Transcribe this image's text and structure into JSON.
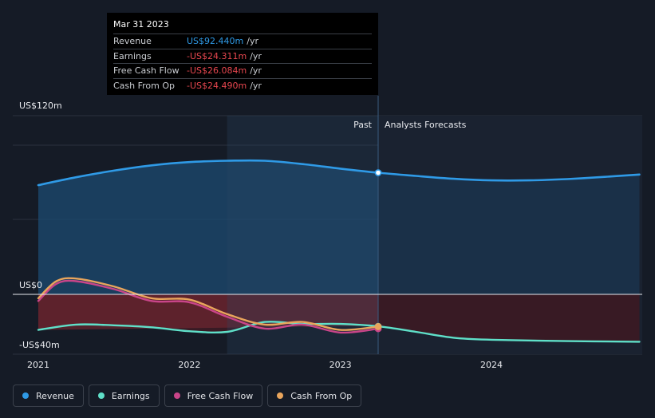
{
  "tooltip": {
    "date": "Mar 31 2023",
    "rows": [
      {
        "label": "Revenue",
        "value": "US$92.440m",
        "unit": "/yr",
        "color": "#2f9ae6"
      },
      {
        "label": "Earnings",
        "value": "-US$24.311m",
        "unit": "/yr",
        "color": "#e8474f"
      },
      {
        "label": "Free Cash Flow",
        "value": "-US$26.084m",
        "unit": "/yr",
        "color": "#e8474f"
      },
      {
        "label": "Cash From Op",
        "value": "-US$24.490m",
        "unit": "/yr",
        "color": "#e8474f"
      }
    ]
  },
  "legend": [
    {
      "label": "Revenue",
      "color": "#2f9ae6"
    },
    {
      "label": "Earnings",
      "color": "#5fe0c9"
    },
    {
      "label": "Free Cash Flow",
      "color": "#c94589"
    },
    {
      "label": "Cash From Op",
      "color": "#e9a55c"
    }
  ],
  "chart_data": {
    "type": "line",
    "y_tick_labels": [
      "US$120m",
      "US$0",
      "-US$40m"
    ],
    "x_tick_labels": [
      "2021",
      "2022",
      "2023",
      "2024"
    ],
    "past_label": "Past",
    "forecast_label": "Analysts Forecasts",
    "ylim": [
      -40,
      120
    ],
    "xlim": [
      2020.83,
      2024.98
    ],
    "past_end": 2023.25,
    "highlight_range": [
      2022.25,
      2023.25
    ],
    "series": [
      {
        "name": "Revenue",
        "color": "#2f9ae6",
        "points": [
          [
            2021.0,
            83
          ],
          [
            2021.25,
            89
          ],
          [
            2021.5,
            94
          ],
          [
            2021.75,
            98
          ],
          [
            2022.0,
            100.5
          ],
          [
            2022.25,
            101.5
          ],
          [
            2022.5,
            101.5
          ],
          [
            2022.75,
            99
          ],
          [
            2023.0,
            95.5
          ],
          [
            2023.25,
            92.4
          ],
          [
            2023.5,
            90
          ],
          [
            2023.75,
            87.8
          ],
          [
            2024.0,
            86.6
          ],
          [
            2024.25,
            86.6
          ],
          [
            2024.5,
            87.6
          ],
          [
            2024.75,
            89.3
          ],
          [
            2024.98,
            91
          ]
        ]
      },
      {
        "name": "Earnings",
        "color": "#5fe0c9",
        "points": [
          [
            2021.0,
            -27
          ],
          [
            2021.25,
            -23
          ],
          [
            2021.5,
            -23.5
          ],
          [
            2021.75,
            -25
          ],
          [
            2022.0,
            -28
          ],
          [
            2022.25,
            -28.5
          ],
          [
            2022.5,
            -21
          ],
          [
            2022.75,
            -22.5
          ],
          [
            2023.0,
            -22.5
          ],
          [
            2023.25,
            -24.3
          ],
          [
            2023.5,
            -28.5
          ],
          [
            2023.75,
            -33
          ],
          [
            2024.0,
            -34.5
          ],
          [
            2024.5,
            -35.5
          ],
          [
            2024.98,
            -36
          ]
        ]
      },
      {
        "name": "Free Cash Flow",
        "color": "#c94589",
        "points": [
          [
            2021.0,
            -5
          ],
          [
            2021.12,
            8
          ],
          [
            2021.25,
            10
          ],
          [
            2021.5,
            4
          ],
          [
            2021.75,
            -5
          ],
          [
            2022.0,
            -6
          ],
          [
            2022.25,
            -17
          ],
          [
            2022.5,
            -26
          ],
          [
            2022.75,
            -23
          ],
          [
            2023.0,
            -29
          ],
          [
            2023.25,
            -26.1
          ]
        ]
      },
      {
        "name": "Cash From Op",
        "color": "#e9a55c",
        "points": [
          [
            2021.0,
            -3
          ],
          [
            2021.12,
            10
          ],
          [
            2021.25,
            12
          ],
          [
            2021.5,
            6
          ],
          [
            2021.75,
            -3
          ],
          [
            2022.0,
            -4
          ],
          [
            2022.25,
            -15
          ],
          [
            2022.5,
            -23
          ],
          [
            2022.75,
            -21
          ],
          [
            2023.0,
            -27
          ],
          [
            2023.25,
            -24.5
          ]
        ]
      }
    ]
  }
}
